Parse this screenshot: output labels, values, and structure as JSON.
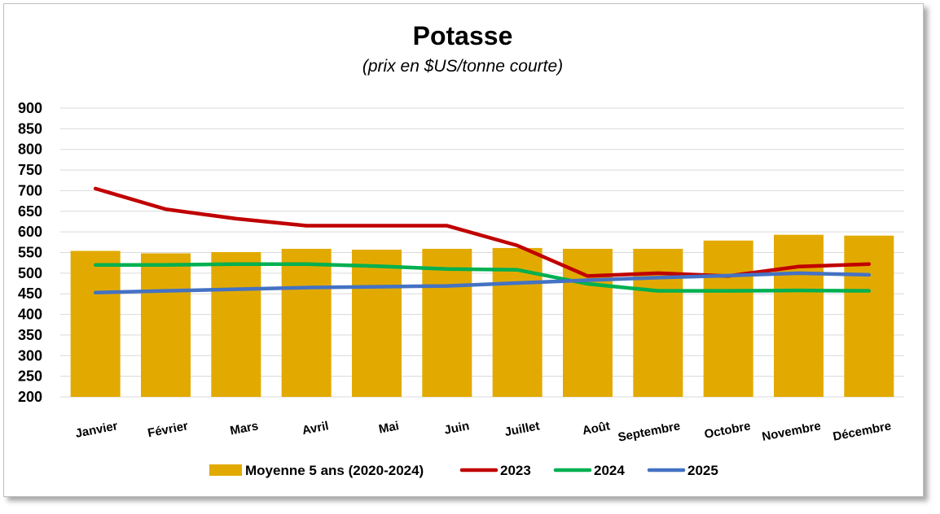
{
  "chart_data": {
    "type": "bar",
    "title": "Potasse",
    "subtitle": "(prix en $US/tonne courte)",
    "categories": [
      "Janvier",
      "Février",
      "Mars",
      "Avril",
      "Mai",
      "Juin",
      "Juillet",
      "Août",
      "Septembre",
      "Octobre",
      "Novembre",
      "Décembre"
    ],
    "ylim": [
      200,
      900
    ],
    "yticks": [
      900,
      850,
      800,
      750,
      700,
      650,
      600,
      550,
      500,
      450,
      400,
      350,
      300,
      250,
      200
    ],
    "grid": true,
    "legend_position": "bottom",
    "bar_series": {
      "name": "Moyenne 5 ans (2020-2024)",
      "color": "#E2AA00",
      "values": [
        554,
        548,
        551,
        559,
        557,
        559,
        561,
        559,
        559,
        579,
        593,
        591
      ]
    },
    "series": [
      {
        "name": "2023",
        "type": "line",
        "color": "#C00000",
        "values": [
          705,
          655,
          632,
          615,
          615,
          615,
          567,
          493,
          500,
          493,
          516,
          522
        ]
      },
      {
        "name": "2024",
        "type": "line",
        "color": "#00B050",
        "values": [
          520,
          520,
          522,
          522,
          517,
          510,
          508,
          474,
          457,
          457,
          458,
          457
        ]
      },
      {
        "name": "2025",
        "type": "line",
        "color": "#4472C4",
        "values": [
          453,
          457,
          461,
          465,
          467,
          469,
          476,
          483,
          489,
          494,
          500,
          496
        ]
      }
    ]
  }
}
